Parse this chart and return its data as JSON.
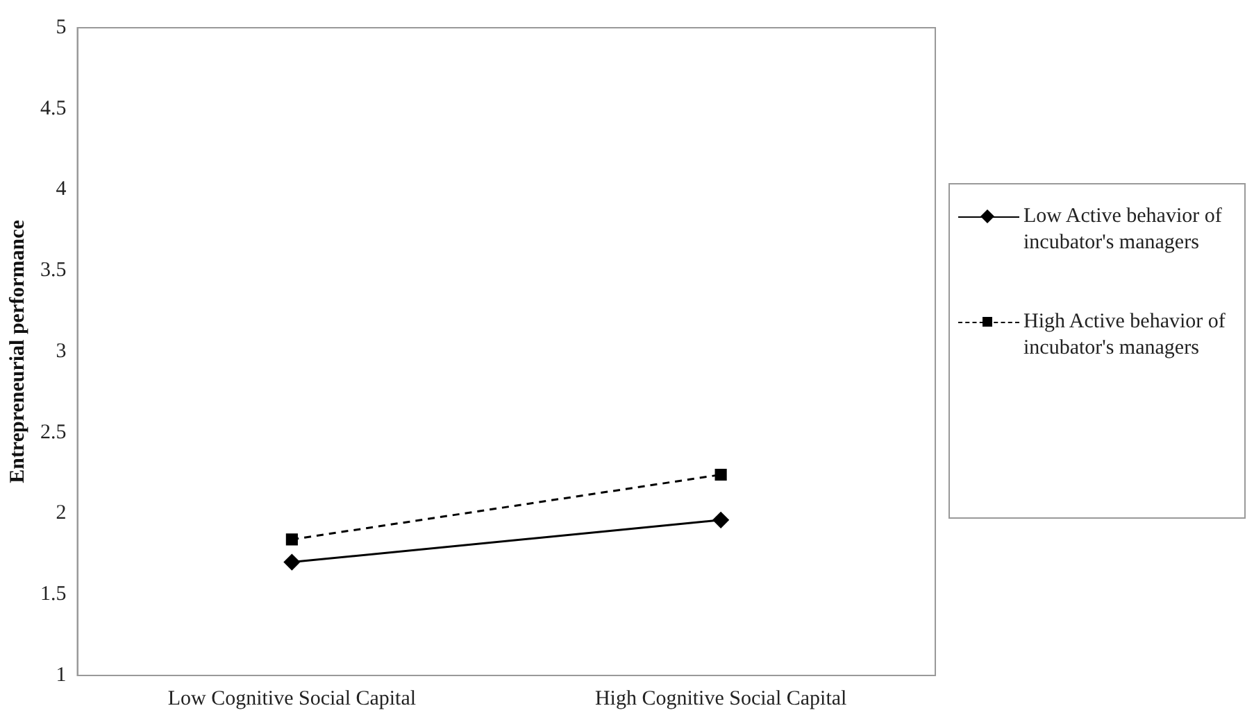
{
  "chart_data": {
    "type": "line",
    "ylabel": "Entrepreneurial performance",
    "categories": [
      "Low Cognitive Social Capital",
      "High Cognitive Social Capital"
    ],
    "series": [
      {
        "name": "Low Active behavior of incubator's managers",
        "color": "#000000",
        "values": [
          1.7,
          1.96
        ],
        "marker": "diamond",
        "line_style": "solid"
      },
      {
        "name": "High Active behavior of incubator's managers",
        "color": "#000000",
        "values": [
          1.84,
          2.24
        ],
        "marker": "square",
        "line_style": "dashed"
      }
    ],
    "ylim": [
      1,
      5
    ],
    "yticks": [
      1,
      1.5,
      2,
      2.5,
      3,
      3.5,
      4,
      4.5,
      5
    ],
    "grid": false,
    "legend": "right"
  }
}
